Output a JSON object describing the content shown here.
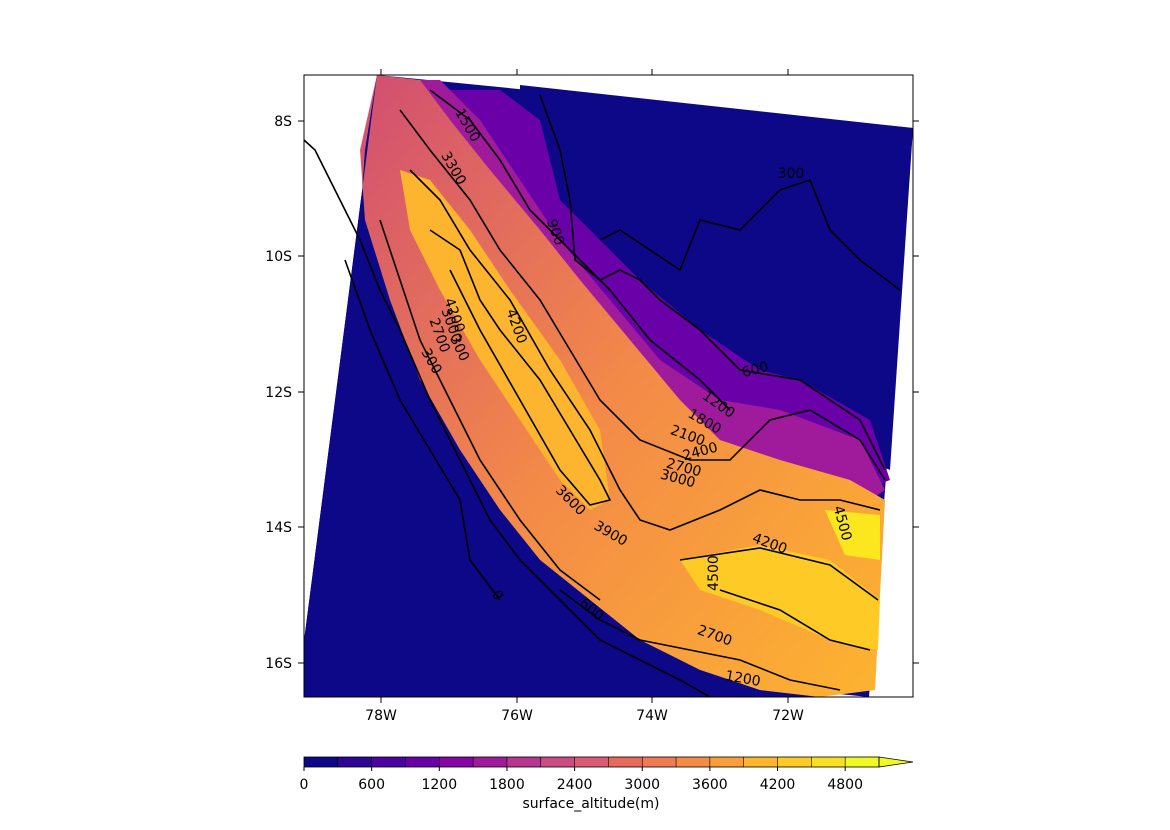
{
  "map": {
    "lon_ticks": [
      "78W",
      "76W",
      "74W",
      "72W"
    ],
    "lat_ticks": [
      "8S",
      "10S",
      "12S",
      "14S",
      "16S"
    ],
    "contour_labels": [
      "300",
      "600",
      "900",
      "1200",
      "1500",
      "1800",
      "2100",
      "2400",
      "2700",
      "3000",
      "3300",
      "3600",
      "3900",
      "4200",
      "4500",
      "4500",
      "4200",
      "3000",
      "2700",
      "2700",
      "1200",
      "600",
      "300",
      "0",
      "4200",
      "300"
    ],
    "colors": {
      "ocean": "#0d0887",
      "ridge_low": "#e66b5b",
      "ridge_high": "#fdb52c",
      "peak": "#fce71f",
      "coast_line": "#000000"
    }
  },
  "colorbar": {
    "tick_labels": [
      "0",
      "600",
      "1200",
      "1800",
      "2400",
      "3000",
      "3600",
      "4200",
      "4800"
    ],
    "label": "surface_altitude(m)",
    "colors": [
      "#0d0887",
      "#2e0595",
      "#4b03a1",
      "#6a00a8",
      "#8606a6",
      "#a01a9c",
      "#b63690",
      "#ca4c82",
      "#da5c74",
      "#e66b5b",
      "#ef7b52",
      "#f58c46",
      "#fa9e3b",
      "#fdb42f",
      "#fdca26",
      "#f8df24",
      "#f0f921"
    ]
  }
}
